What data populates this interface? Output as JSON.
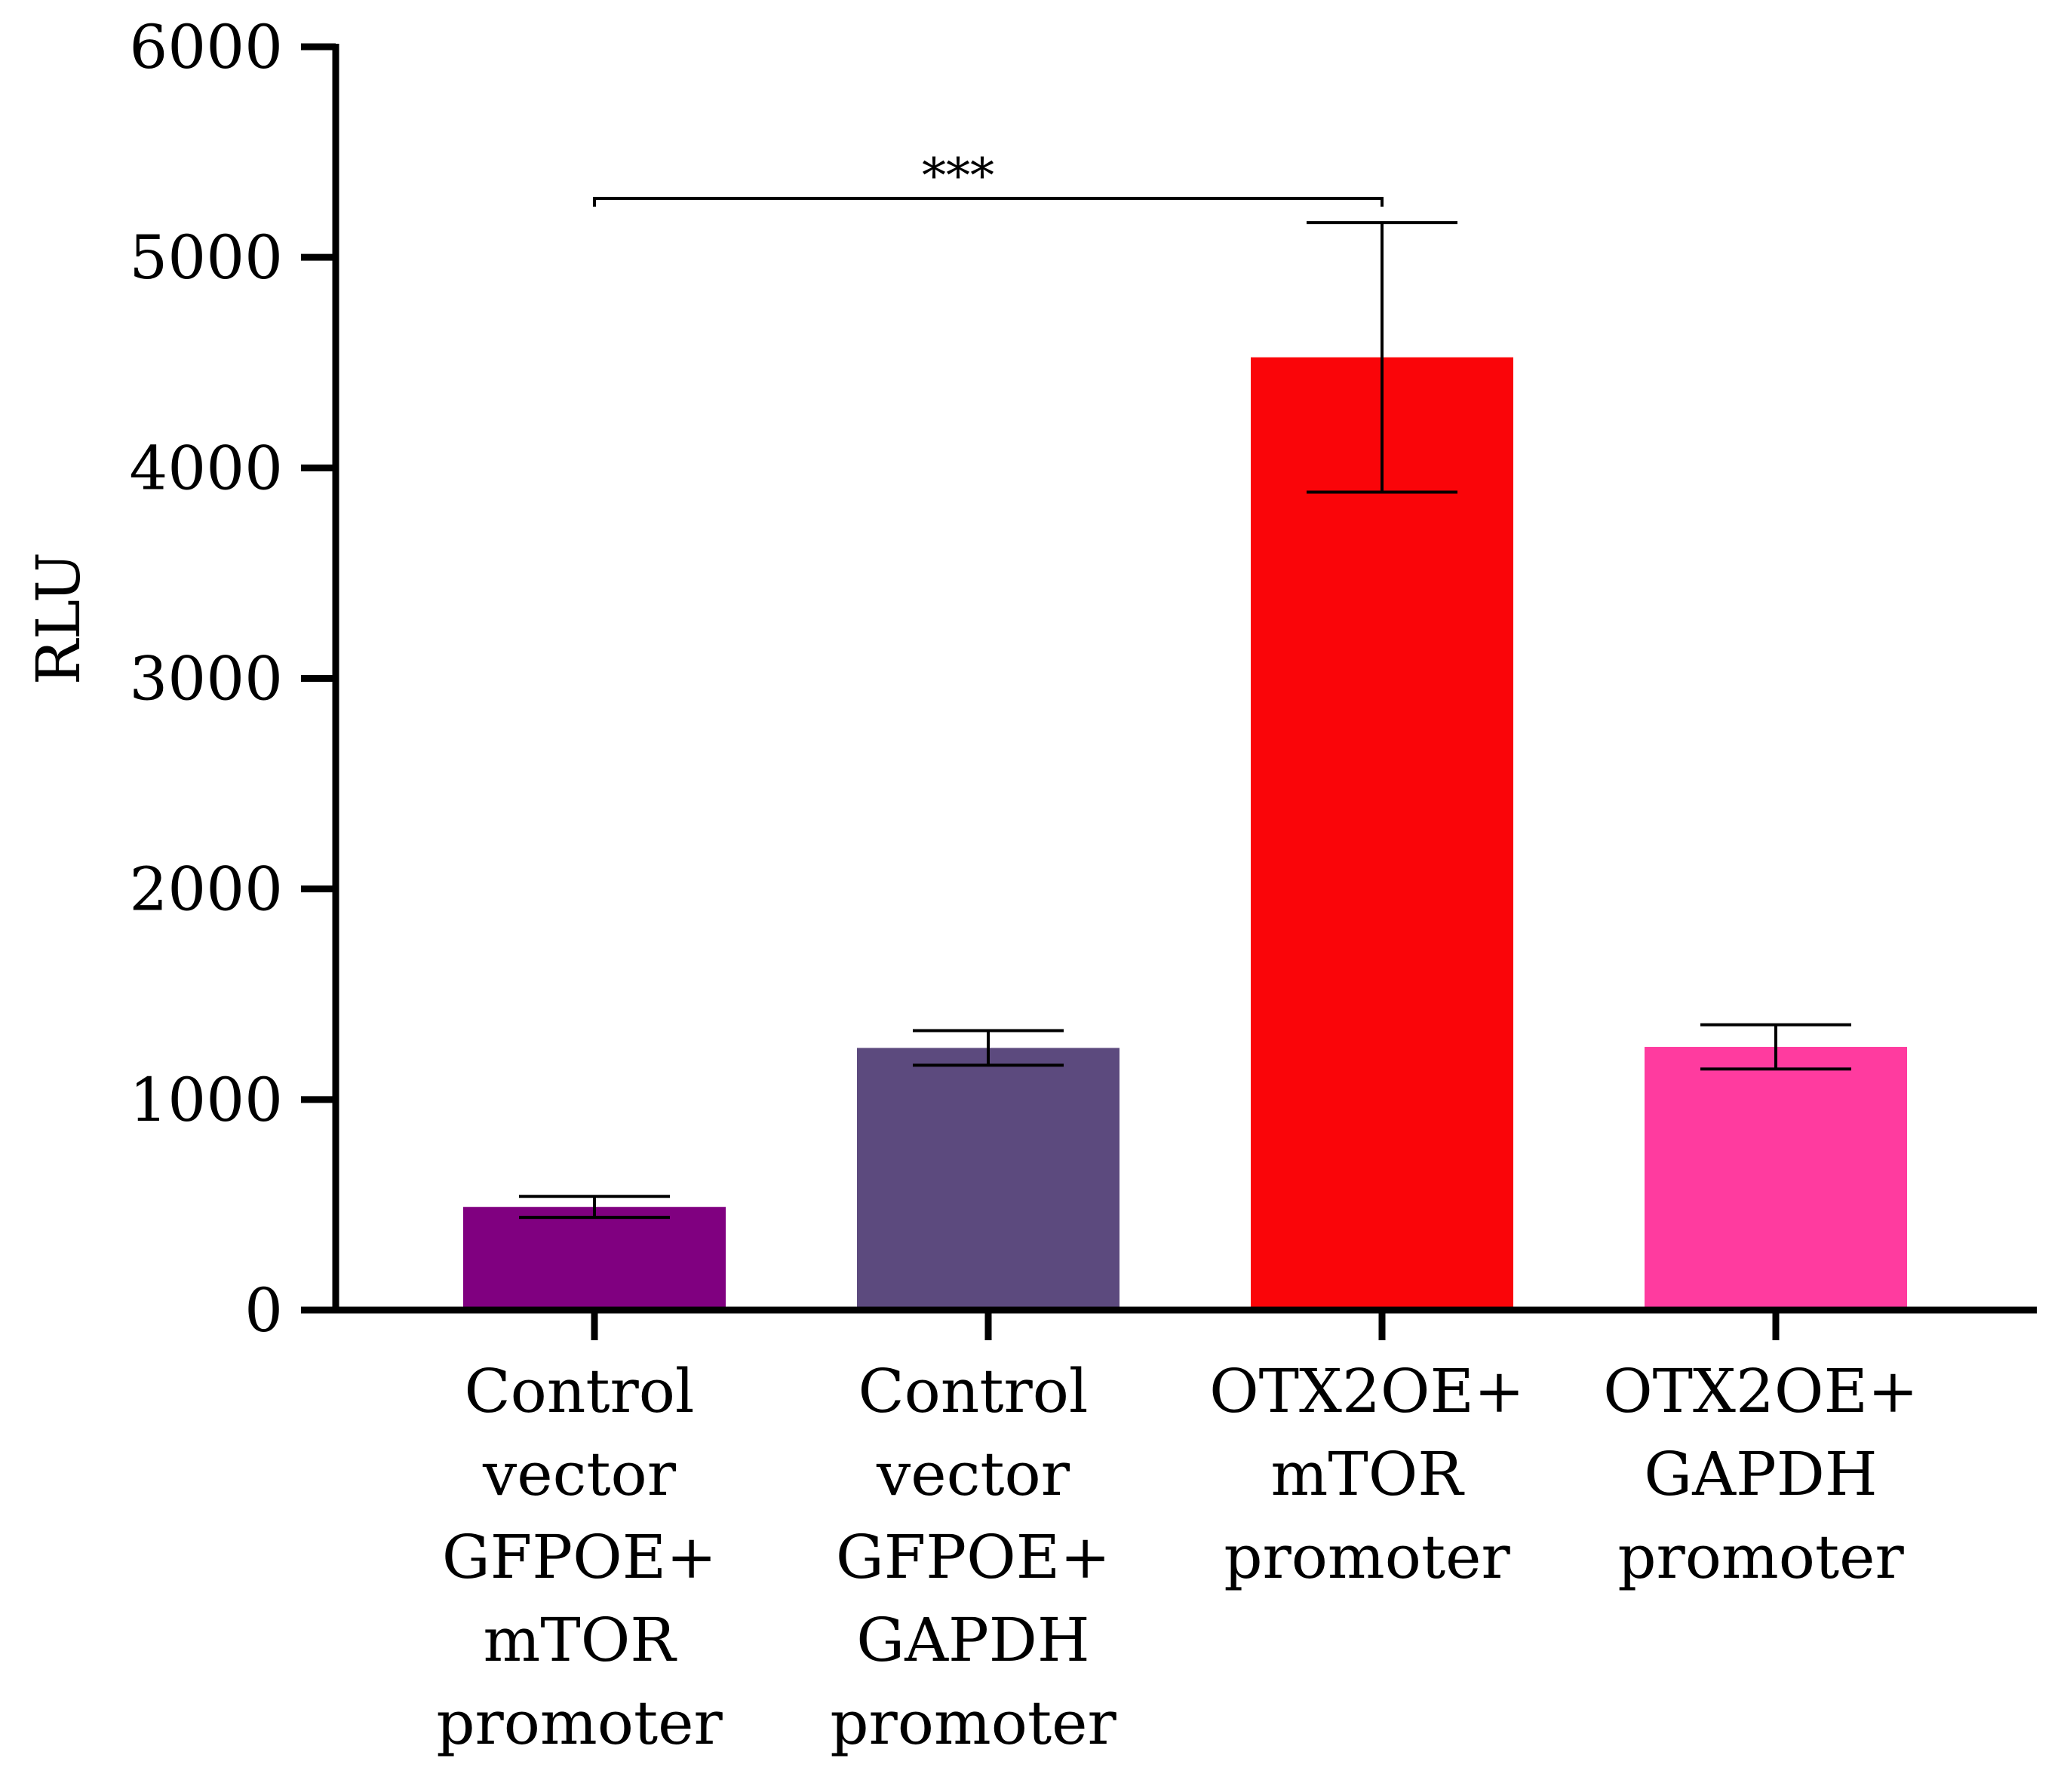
{
  "chart_data": {
    "type": "bar",
    "title": "",
    "xlabel": "",
    "ylabel": "RLU",
    "ylim": [
      0,
      6000
    ],
    "yticks": [
      0,
      1000,
      2000,
      3000,
      4000,
      5000,
      6000
    ],
    "ytick_labels": [
      "0",
      "1000",
      "2000",
      "3000",
      "4000",
      "5000",
      "6000"
    ],
    "grid": false,
    "legend": "none",
    "categories": [
      [
        "Control",
        "vector",
        "GFPOE+",
        "mTOR",
        "promoter"
      ],
      [
        "Control",
        "vector",
        "GFPOE+",
        "GAPDH",
        "promoter"
      ],
      [
        "OTX2OE+",
        "mTOR",
        "promoter"
      ],
      [
        "OTX2OE+",
        "GAPDH",
        "promoter"
      ]
    ],
    "values": [
      490,
      1245,
      4525,
      1250
    ],
    "errors": [
      50,
      82,
      640,
      105
    ],
    "colors": [
      "#800080",
      "#5c4a7e",
      "#fa0509",
      "#ff3b9f"
    ],
    "annotations": [
      {
        "text": "***",
        "from": 0,
        "to": 2
      }
    ]
  }
}
